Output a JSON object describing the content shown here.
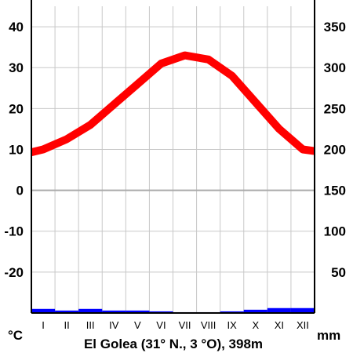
{
  "chart_data": {
    "type": "line",
    "title": "El Golea (31° N., 3 °O), 398m",
    "categories": [
      "I",
      "II",
      "III",
      "IV",
      "V",
      "VI",
      "VII",
      "VIII",
      "IX",
      "X",
      "XI",
      "XII"
    ],
    "left_axis": {
      "unit": "°C",
      "ticks": [
        "40",
        "30",
        "20",
        "10",
        "0",
        "-10",
        "-20"
      ],
      "ylim": [
        -30,
        45
      ]
    },
    "right_axis": {
      "unit": "mm",
      "ticks": [
        "350",
        "300",
        "250",
        "200",
        "150",
        "100",
        "50"
      ],
      "ylim": [
        0,
        375
      ]
    },
    "series": [
      {
        "kind": "temperature",
        "axis": "left",
        "color": "#ff0000",
        "values": [
          10,
          12.5,
          16,
          21,
          26,
          31,
          33,
          32,
          28,
          21.5,
          15,
          10
        ]
      },
      {
        "kind": "precipitation",
        "axis": "right",
        "color": "#0000ff",
        "values": [
          5,
          3,
          5,
          3,
          3,
          2,
          1,
          1,
          2,
          4,
          6,
          6
        ]
      }
    ],
    "zero_line_color": "#aaaaaa",
    "grid": true
  }
}
